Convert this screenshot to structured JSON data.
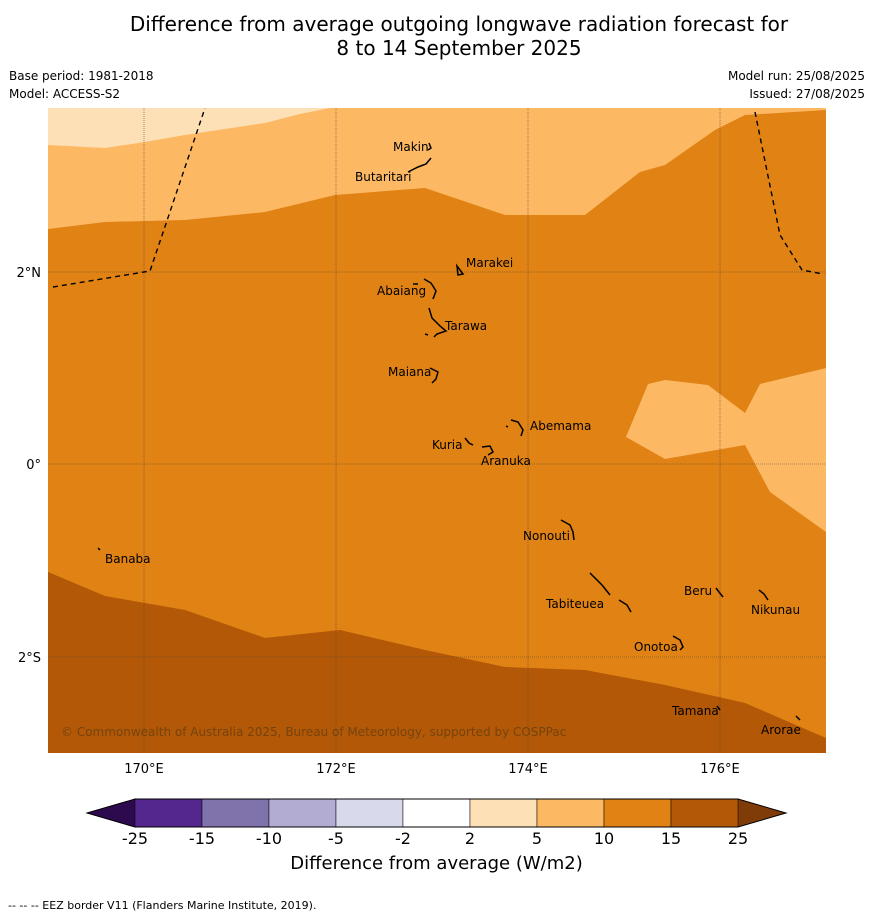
{
  "title": {
    "line1": "Difference from average outgoing longwave radiation forecast for",
    "line2": "8 to 14 September 2025"
  },
  "meta": {
    "base_period": "Base period: 1981-2018",
    "model": "Model: ACCESS-S2",
    "model_run": "Model run: 25/08/2025",
    "issued": "Issued: 27/08/2025"
  },
  "axes": {
    "lon_labels": [
      "170°E",
      "172°E",
      "174°E",
      "176°E"
    ],
    "lat_labels": [
      "2°N",
      "0°",
      "2°S"
    ]
  },
  "copyright": "© Commonwealth of Australia 2025, Bureau of Meteorology, supported by COSPPac",
  "places": [
    "Makin",
    "Butaritari",
    "Marakei",
    "Abaiang",
    "Tarawa",
    "Maiana",
    "Abemama",
    "Kuria",
    "Aranuka",
    "Banaba",
    "Nonouti",
    "Beru",
    "Tabiteuea",
    "Nikunau",
    "Onotoa",
    "Tamana",
    "Arorae"
  ],
  "colorbar": {
    "title": "Difference from average (W/m2)",
    "ticks": [
      "-25",
      "-15",
      "-10",
      "-5",
      "-2",
      "2",
      "5",
      "10",
      "15",
      "25"
    ],
    "colors": {
      "lt_neg25": "#2d0a4e",
      "neg25_neg15": "#54278f",
      "neg15_neg10": "#8073ac",
      "neg10_neg5": "#b2abd2",
      "neg5_neg2": "#d8daeb",
      "neg2_2": "#ffffff",
      "2_5": "#fee0b6",
      "5_10": "#fdb863",
      "10_15": "#e08214",
      "15_25": "#b35806",
      "gt_25": "#7f3b08"
    }
  },
  "footnote": "--  --  -- EEZ border V11 (Flanders Marine Institute, 2019)."
}
